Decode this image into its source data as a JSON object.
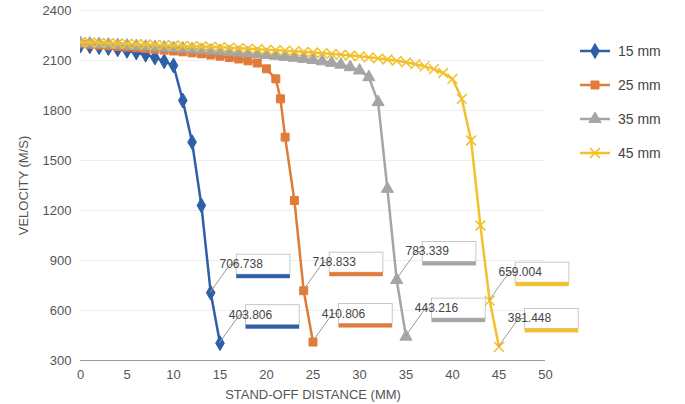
{
  "chart_data": {
    "type": "line",
    "x_label": "STAND-OFF DISTANCE (MM)",
    "y_label": "VELOCITY (M/S)",
    "xlim": [
      0,
      50
    ],
    "xticks": [
      0,
      5,
      10,
      15,
      20,
      25,
      30,
      35,
      40,
      45,
      50
    ],
    "ylim": [
      300,
      2400
    ],
    "yticks": [
      300,
      600,
      900,
      1200,
      1500,
      1800,
      2100,
      2400
    ],
    "grid": true,
    "legend": "right",
    "series": [
      {
        "name": "15 mm",
        "color": "#2e5fa8",
        "marker": "diamond",
        "x": [
          0,
          1,
          2,
          3,
          4,
          5,
          6,
          7,
          8,
          9,
          10,
          11,
          12,
          13,
          14,
          15
        ],
        "values": [
          2190,
          2185,
          2180,
          2174,
          2167,
          2158,
          2148,
          2135,
          2118,
          2095,
          2070,
          1860,
          1610,
          1230,
          706.738,
          403.806
        ]
      },
      {
        "name": "25 mm",
        "color": "#e07b39",
        "marker": "square",
        "x": [
          0,
          1,
          2,
          3,
          4,
          5,
          6,
          7,
          8,
          9,
          10,
          11,
          12,
          13,
          14,
          15,
          16,
          17,
          18,
          19,
          20,
          21,
          21.5,
          22,
          23,
          24,
          25
        ],
        "values": [
          2200,
          2196,
          2192,
          2188,
          2184,
          2180,
          2176,
          2172,
          2167,
          2162,
          2157,
          2152,
          2146,
          2140,
          2133,
          2126,
          2118,
          2109,
          2098,
          2085,
          2050,
          1990,
          1870,
          1640,
          1260,
          718.833,
          410.806
        ]
      },
      {
        "name": "35 mm",
        "color": "#a5a5a5",
        "marker": "triangle",
        "x": [
          0,
          1,
          2,
          3,
          4,
          5,
          6,
          7,
          8,
          9,
          10,
          11,
          12,
          13,
          14,
          15,
          16,
          17,
          18,
          19,
          20,
          21,
          22,
          23,
          24,
          25,
          26,
          27,
          28,
          29,
          30,
          31,
          32,
          33,
          34,
          35
        ],
        "values": [
          2205,
          2202,
          2199,
          2196,
          2193,
          2190,
          2187,
          2184,
          2181,
          2178,
          2175,
          2172,
          2168,
          2164,
          2160,
          2156,
          2152,
          2148,
          2143,
          2138,
          2133,
          2128,
          2122,
          2116,
          2110,
          2103,
          2095,
          2086,
          2075,
          2060,
          2040,
          2000,
          1850,
          1330,
          783.339,
          443.216
        ]
      },
      {
        "name": "45 mm",
        "color": "#f2c12e",
        "marker": "x",
        "x": [
          0,
          1,
          2,
          3,
          4,
          5,
          6,
          7,
          8,
          9,
          10,
          11,
          12,
          13,
          14,
          15,
          16,
          17,
          18,
          19,
          20,
          21,
          22,
          23,
          24,
          25,
          26,
          27,
          28,
          29,
          30,
          31,
          32,
          33,
          34,
          35,
          36,
          37,
          38,
          39,
          40,
          41,
          42,
          43,
          44,
          45
        ],
        "values": [
          2210,
          2208,
          2206,
          2204,
          2202,
          2200,
          2198,
          2196,
          2194,
          2192,
          2190,
          2188,
          2186,
          2184,
          2182,
          2180,
          2177,
          2174,
          2171,
          2168,
          2165,
          2162,
          2159,
          2156,
          2152,
          2148,
          2144,
          2140,
          2135,
          2130,
          2125,
          2119,
          2113,
          2106,
          2098,
          2089,
          2078,
          2065,
          2048,
          2025,
          1990,
          1870,
          1620,
          1110,
          659.004,
          381.448
        ]
      }
    ],
    "annotations": [
      {
        "series": "15 mm",
        "x": 14,
        "y": 706.738,
        "text": "706.738"
      },
      {
        "series": "15 mm",
        "x": 15,
        "y": 403.806,
        "text": "403.806"
      },
      {
        "series": "25 mm",
        "x": 24,
        "y": 718.833,
        "text": "718.833"
      },
      {
        "series": "25 mm",
        "x": 25,
        "y": 410.806,
        "text": "410.806"
      },
      {
        "series": "35 mm",
        "x": 34,
        "y": 783.339,
        "text": "783.339"
      },
      {
        "series": "35 mm",
        "x": 35,
        "y": 443.216,
        "text": "443.216"
      },
      {
        "series": "45 mm",
        "x": 44,
        "y": 659.004,
        "text": "659.004"
      },
      {
        "series": "45 mm",
        "x": 45,
        "y": 381.448,
        "text": "381.448"
      }
    ]
  }
}
